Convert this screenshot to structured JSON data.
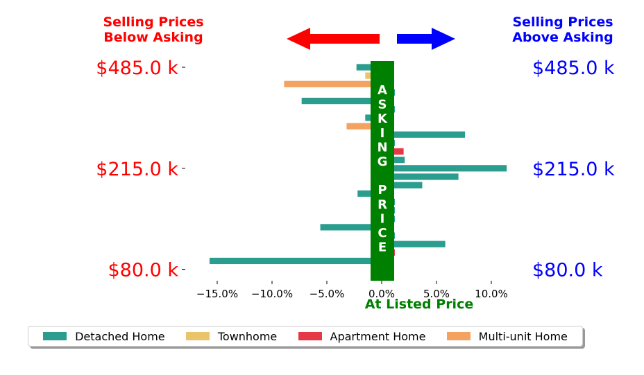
{
  "chart_data": {
    "type": "bar",
    "orientation": "horizontal",
    "x_unit": "percent",
    "xlim": [
      -16.2,
      11.8
    ],
    "x_ticks": [
      -15,
      -10,
      -5,
      0,
      5,
      10
    ],
    "x_tick_labels": [
      "−15.0%",
      "−10.0%",
      "−5.0%",
      "0.0%",
      "5.0%",
      "10.0%"
    ],
    "xlabel": "At Listed Price",
    "y_tick_labels_left": [
      "$485.0 k",
      "$215.0 k",
      "$80.0 k"
    ],
    "y_tick_labels_right": [
      "$485.0 k",
      "$215.0 k",
      "$80.0 k"
    ],
    "y_tick_rows": [
      0,
      12,
      24
    ],
    "left_header": [
      "Selling Prices",
      "Below Asking"
    ],
    "right_header": [
      "Selling Prices",
      "Above Asking"
    ],
    "asking_price_letters": [
      "A",
      "S",
      "K",
      "I",
      "N",
      "G",
      "",
      "P",
      "R",
      "I",
      "C",
      "E"
    ],
    "series": [
      {
        "name": "Detached Home",
        "color": "#2a9d8f"
      },
      {
        "name": "Townhome",
        "color": "#e9c46a"
      },
      {
        "name": "Apartment Home",
        "color": "#e63946"
      },
      {
        "name": "Multi-unit Home",
        "color": "#f4a261"
      }
    ],
    "bars": [
      {
        "row": 0,
        "type": "Detached Home",
        "value": -2.3
      },
      {
        "row": 1,
        "type": "Townhome",
        "value": -1.5
      },
      {
        "row": 2,
        "type": "Multi-unit Home",
        "value": -8.9
      },
      {
        "row": 3,
        "type": "Detached Home",
        "value": 1.2
      },
      {
        "row": 4,
        "type": "Detached Home",
        "value": -7.3
      },
      {
        "row": 5,
        "type": "Detached Home",
        "value": 1.2
      },
      {
        "row": 6,
        "type": "Detached Home",
        "value": -1.5
      },
      {
        "row": 7,
        "type": "Multi-unit Home",
        "value": -3.2
      },
      {
        "row": 8,
        "type": "Detached Home",
        "value": 7.6
      },
      {
        "row": 9,
        "type": "Detached Home",
        "value": 1.2
      },
      {
        "row": 10,
        "type": "Apartment Home",
        "value": 2.0
      },
      {
        "row": 11,
        "type": "Detached Home",
        "value": 2.1
      },
      {
        "row": 12,
        "type": "Detached Home",
        "value": 11.4
      },
      {
        "row": 13,
        "type": "Detached Home",
        "value": 7.0
      },
      {
        "row": 14,
        "type": "Detached Home",
        "value": 3.7
      },
      {
        "row": 15,
        "type": "Detached Home",
        "value": -2.2
      },
      {
        "row": 16,
        "type": "Detached Home",
        "value": 1.2
      },
      {
        "row": 17,
        "type": "Detached Home",
        "value": 1.2
      },
      {
        "row": 18,
        "type": "Detached Home",
        "value": 1.2
      },
      {
        "row": 19,
        "type": "Detached Home",
        "value": -5.6
      },
      {
        "row": 20,
        "type": "Detached Home",
        "value": 1.2
      },
      {
        "row": 21,
        "type": "Detached Home",
        "value": 5.8
      },
      {
        "row": 22,
        "type": "Apartment Home",
        "value": 1.2
      },
      {
        "row": 23,
        "type": "Detached Home",
        "value": -15.7
      }
    ],
    "colors": {
      "below": "#ff0000",
      "above": "#0000ff",
      "asking": "#008000"
    }
  }
}
